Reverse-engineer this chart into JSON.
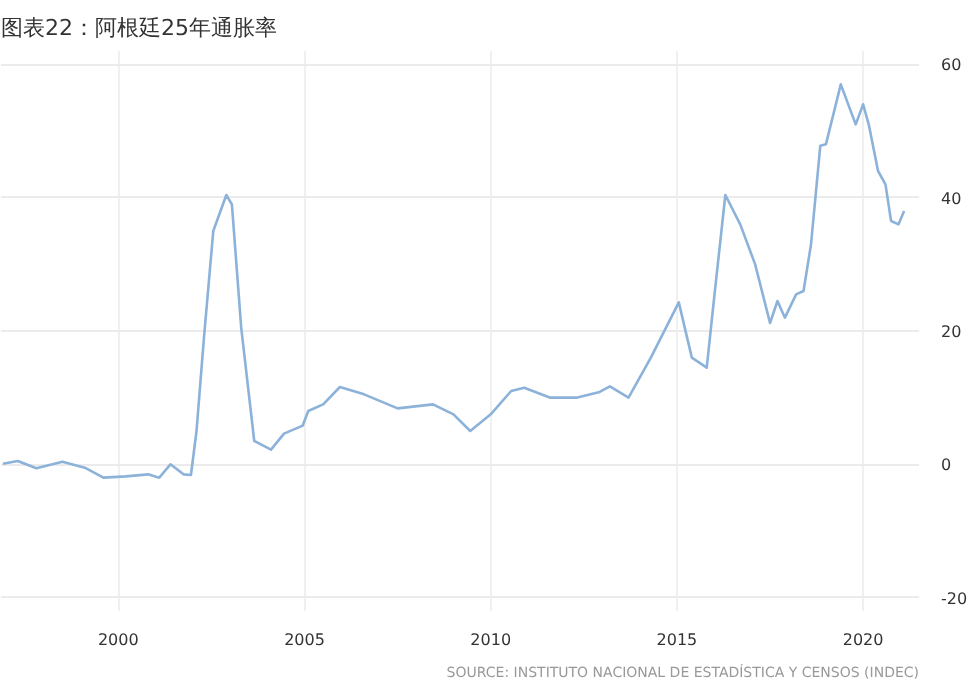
{
  "chart_data": {
    "type": "line",
    "title": "图表22：阿根廷25年通胀率",
    "x": [
      1996.9,
      1997.3,
      1997.8,
      1998.5,
      1999.1,
      1999.6,
      2000.2,
      2000.8,
      2001.1,
      2001.4,
      2001.75,
      2001.95,
      2002.1,
      2002.3,
      2002.55,
      2002.9,
      2003.05,
      2003.3,
      2003.65,
      2004.1,
      2004.45,
      2004.95,
      2005.1,
      2005.5,
      2005.95,
      2006.6,
      2007.5,
      2008.45,
      2009.0,
      2009.45,
      2010.0,
      2010.55,
      2010.9,
      2011.6,
      2012.3,
      2012.9,
      2013.2,
      2013.7,
      2014.3,
      2015.05,
      2015.4,
      2015.8,
      2016.0,
      2016.3,
      2016.7,
      2017.1,
      2017.5,
      2017.7,
      2017.9,
      2018.2,
      2018.4,
      2018.6,
      2018.85,
      2019.0,
      2019.4,
      2019.6,
      2019.8,
      2020.0,
      2020.15,
      2020.4,
      2020.6,
      2020.75,
      2020.95,
      2021.1
    ],
    "values": [
      0.1,
      0.5,
      -0.6,
      0.4,
      -0.5,
      -2,
      -1.8,
      -1.5,
      -2,
      0,
      -1.5,
      -1.6,
      5,
      19,
      35,
      40.4,
      39,
      20.5,
      3.5,
      2.2,
      4.6,
      5.8,
      8,
      9,
      11.6,
      10.5,
      8.4,
      9,
      7.5,
      5,
      7.5,
      11,
      11.5,
      10,
      10,
      10.8,
      11.7,
      10,
      16,
      24.3,
      16,
      14.5,
      25,
      40.4,
      36,
      30,
      21.2,
      24.5,
      22,
      25.5,
      26,
      33,
      47.8,
      48,
      57,
      54,
      51,
      54,
      51,
      44,
      42,
      36.5,
      36,
      38
    ],
    "color": "#8cb2da",
    "xlim": [
      1996.85,
      2021.5
    ],
    "ylim": [
      -22,
      62
    ],
    "xticks": [
      2000,
      2005,
      2010,
      2015,
      2020
    ],
    "yticks": [
      -20,
      0,
      20,
      40,
      60
    ],
    "grid": true,
    "annotations": [
      "SOURCE: INSTITUTO NACIONAL DE ESTADÍSTICA Y CENSOS (INDEC)"
    ]
  }
}
